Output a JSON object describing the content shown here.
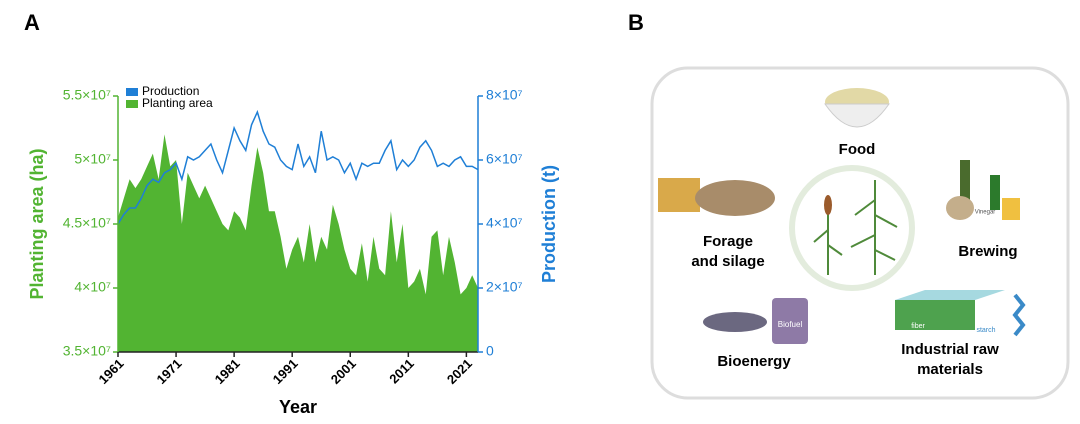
{
  "panel_labels": [
    "A",
    "B"
  ],
  "chart_data": {
    "type": "area",
    "x_label": "Year",
    "y_label": "Planting area (ha)",
    "y2_label": "Production (t)",
    "legend": "upper left",
    "x": [
      1961,
      1962,
      1963,
      1964,
      1965,
      1966,
      1967,
      1968,
      1969,
      1970,
      1971,
      1972,
      1973,
      1974,
      1975,
      1976,
      1977,
      1978,
      1979,
      1980,
      1981,
      1982,
      1983,
      1984,
      1985,
      1986,
      1987,
      1988,
      1989,
      1990,
      1991,
      1992,
      1993,
      1994,
      1995,
      1996,
      1997,
      1998,
      1999,
      2000,
      2001,
      2002,
      2003,
      2004,
      2005,
      2006,
      2007,
      2008,
      2009,
      2010,
      2011,
      2012,
      2013,
      2014,
      2015,
      2016,
      2017,
      2018,
      2019,
      2020,
      2021,
      2022,
      2023
    ],
    "xlim": [
      1961,
      2023
    ],
    "xticks": [
      1961,
      1971,
      1981,
      1991,
      2001,
      2011,
      2021
    ],
    "ylim": [
      35000000,
      55000000
    ],
    "yticks": [
      {
        "value": 35000000,
        "label": "3.5×10⁷"
      },
      {
        "value": 40000000,
        "label": "4×10⁷"
      },
      {
        "value": 45000000,
        "label": "4.5×10⁷"
      },
      {
        "value": 50000000,
        "label": "5×10⁷"
      },
      {
        "value": 55000000,
        "label": "5.5×10⁷"
      }
    ],
    "y2lim": [
      0,
      80000000
    ],
    "y2ticks": [
      0,
      {
        "value": 20000000,
        "label": "2×10⁷"
      },
      {
        "value": 40000000,
        "label": "4×10⁷"
      },
      {
        "value": 60000000,
        "label": "6×10⁷"
      },
      {
        "value": 80000000,
        "label": "8×10⁷"
      }
    ],
    "series": [
      {
        "name": "Production",
        "color": "#1f7fd6",
        "type": "line",
        "axis": "y2",
        "values": [
          40000000,
          43000000,
          45000000,
          45000000,
          48000000,
          52000000,
          54000000,
          53000000,
          56000000,
          57000000,
          59000000,
          54000000,
          61000000,
          60000000,
          61000000,
          63000000,
          65000000,
          60000000,
          56000000,
          63000000,
          70000000,
          66000000,
          63000000,
          71000000,
          75000000,
          69000000,
          65000000,
          64000000,
          60000000,
          58000000,
          57000000,
          65000000,
          58000000,
          61000000,
          56000000,
          69000000,
          60000000,
          61000000,
          60000000,
          56000000,
          59000000,
          54000000,
          59000000,
          58000000,
          59000000,
          59000000,
          63000000,
          66000000,
          57000000,
          60000000,
          58000000,
          60000000,
          64000000,
          66000000,
          63000000,
          58000000,
          59000000,
          58000000,
          60000000,
          61000000,
          58000000,
          58000000,
          57000000
        ]
      },
      {
        "name": "Planting area",
        "color": "#52b432",
        "type": "area",
        "axis": "y",
        "values": [
          45500000,
          47000000,
          48500000,
          47800000,
          48500000,
          49500000,
          50500000,
          48500000,
          52000000,
          49500000,
          50000000,
          45000000,
          49000000,
          48000000,
          47000000,
          48000000,
          47000000,
          46000000,
          45000000,
          44500000,
          46000000,
          45500000,
          44500000,
          48000000,
          51000000,
          49000000,
          46000000,
          46000000,
          44000000,
          41500000,
          43000000,
          44000000,
          42000000,
          45000000,
          42000000,
          44000000,
          43000000,
          46500000,
          45000000,
          43000000,
          41500000,
          41000000,
          43500000,
          40500000,
          44000000,
          41500000,
          41000000,
          46000000,
          42000000,
          45000000,
          40000000,
          40500000,
          41500000,
          39500000,
          44000000,
          44500000,
          41000000,
          44000000,
          42000000,
          39500000,
          40000000,
          41000000,
          40000000
        ]
      }
    ]
  },
  "diagram": {
    "food": "Food",
    "forage": [
      "Forage",
      "and silage"
    ],
    "brewing": "Brewing",
    "bioenergy": "Bioenergy",
    "industrial": [
      "Industrial raw",
      "materials"
    ],
    "biofuel": "Biofuel",
    "vinegar": "Vinegar",
    "fiber": "fiber",
    "starch": "starch"
  }
}
